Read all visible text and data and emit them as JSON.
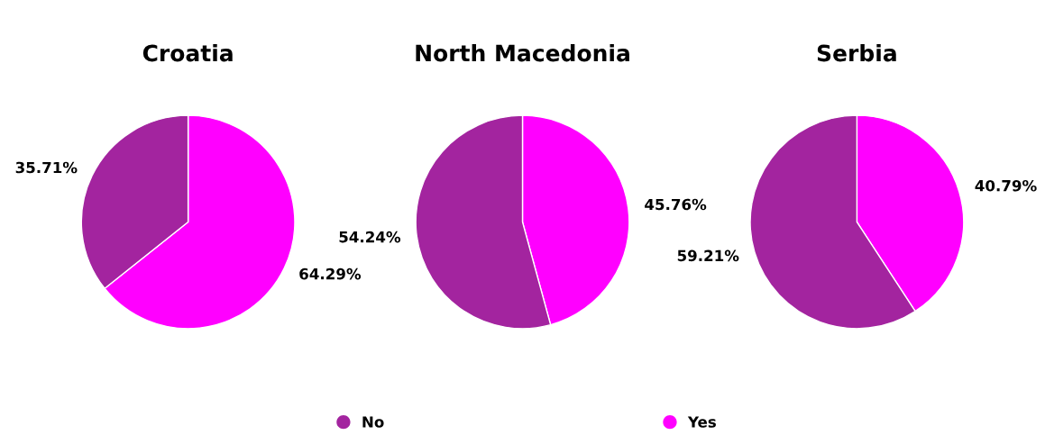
{
  "chart_data": [
    {
      "type": "pie",
      "title": "Croatia",
      "categories": [
        "Yes",
        "No"
      ],
      "values": [
        64.29,
        35.71
      ],
      "colors": [
        "#ff00ff",
        "#a3249f"
      ],
      "value_labels": [
        "64.29%",
        "35.71%"
      ],
      "legend": "bottom"
    },
    {
      "type": "pie",
      "title": "North Macedonia",
      "categories": [
        null,
        null
      ],
      "values": [
        45.76,
        54.24
      ],
      "colors": [
        "#ff00ff",
        "#a3249f"
      ],
      "value_labels": [
        "45.76%",
        "54.24%"
      ]
    },
    {
      "type": "pie",
      "title": "Serbia",
      "categories": [
        null,
        null
      ],
      "values": [
        40.79,
        59.21
      ],
      "colors": [
        "#ff00ff",
        "#a3249f"
      ],
      "value_labels": [
        "40.79%",
        "59.21%"
      ]
    }
  ]
}
